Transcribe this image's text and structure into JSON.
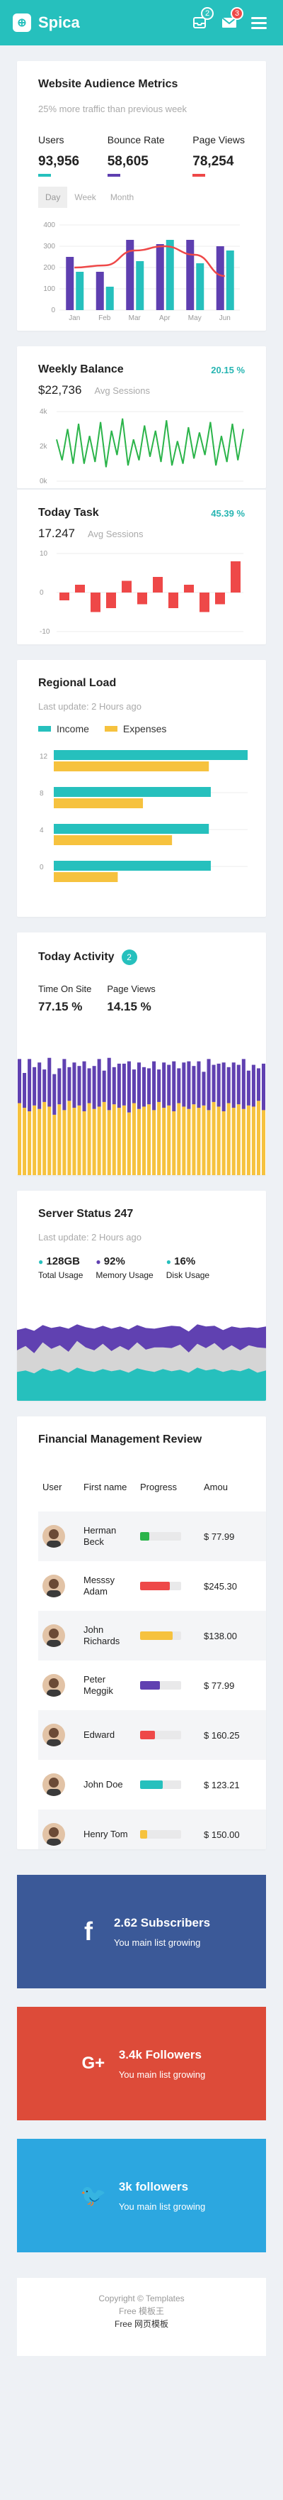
{
  "app": {
    "brand": "Spica",
    "logo_icon": "plus-square-icon",
    "topbar_color": "#26c0bd"
  },
  "notifications": {
    "inbox_badge": "2",
    "mail_badge": "3"
  },
  "audience": {
    "title": "Website Audience Metrics",
    "subtitle": "25% more traffic than previous week",
    "metrics": [
      {
        "label": "Users",
        "value": "93,956",
        "color": "#26c0bd"
      },
      {
        "label": "Bounce Rate",
        "value": "58,605",
        "color": "#5e3fb0"
      },
      {
        "label": "Page Views",
        "value": "78,254",
        "color": "#ee4848"
      }
    ],
    "tabs": [
      "Day",
      "Week",
      "Month"
    ],
    "chart_data": {
      "type": "bar",
      "categories": [
        "Jan",
        "Feb",
        "Mar",
        "Apr",
        "May",
        "Jun"
      ],
      "y_ticks": [
        0,
        100,
        200,
        300,
        400
      ],
      "ylim": [
        0,
        400
      ],
      "series": [
        {
          "values": [
            250,
            180,
            330,
            310,
            330,
            300
          ],
          "color": "#5e3fb0"
        },
        {
          "values": [
            180,
            110,
            230,
            330,
            220,
            280
          ],
          "color": "#26c0bd"
        }
      ],
      "line": {
        "values": [
          200,
          210,
          280,
          300,
          260,
          160
        ],
        "color": "#ee4848"
      }
    }
  },
  "weekly": {
    "title": "Weekly Balance",
    "change": "20.15 %",
    "amount": "$22,736",
    "avg_label": "Avg Sessions",
    "chart_data": {
      "type": "line",
      "y_ticks": [
        "4k",
        "2k",
        "0k"
      ],
      "ylim": [
        0,
        4
      ],
      "values": [
        2.4,
        1.2,
        3.0,
        1.0,
        3.3,
        1.0,
        2.6,
        1.1,
        3.4,
        0.8,
        2.9,
        1.5,
        3.6,
        0.9,
        2.4,
        1.2,
        3.2,
        1.4,
        2.9,
        1.1,
        3.5,
        0.9,
        2.3,
        1.0,
        3.1,
        1.3,
        2.8,
        1.5,
        3.4,
        0.9,
        2.6,
        1.1,
        3.3,
        1.2,
        3.0
      ],
      "color": "#2bb44a"
    }
  },
  "today_task": {
    "title": "Today Task",
    "change": "45.39 %",
    "value": "17.247",
    "avg_label": "Avg Sessions",
    "chart_data": {
      "type": "bar",
      "y_ticks": [
        10,
        0,
        -10
      ],
      "ylim": [
        -10,
        10
      ],
      "values": [
        -2,
        2,
        -5,
        -4,
        3,
        -3,
        4,
        -4,
        2,
        -5,
        -3,
        8
      ],
      "color": "#ee4848"
    }
  },
  "regional": {
    "title": "Regional Load",
    "updated": "Last update: 2 Hours ago",
    "legend": [
      {
        "label": "Income",
        "color": "#26c0bd"
      },
      {
        "label": "Expenses",
        "color": "#f6c23e"
      }
    ],
    "chart_data": {
      "type": "bar",
      "orientation": "horizontal",
      "categories": [
        "12",
        "8",
        "4",
        "0"
      ],
      "series": [
        {
          "values": [
            100,
            81,
            80,
            81
          ]
        },
        {
          "values": [
            80,
            46,
            61,
            33
          ]
        }
      ],
      "xlim": [
        0,
        100
      ]
    }
  },
  "activity": {
    "title": "Today Activity",
    "badge": "2",
    "stats": [
      {
        "label": "Time On Site",
        "value": "77.15 %"
      },
      {
        "label": "Page Views",
        "value": "14.15 %"
      }
    ],
    "chart_data": {
      "type": "bar",
      "stacked": true,
      "series": [
        {
          "values": [
            62,
            58,
            55,
            60,
            57,
            63,
            59,
            52,
            61,
            56,
            64,
            58,
            60,
            55,
            62,
            57,
            59,
            63,
            56,
            61,
            58,
            60,
            54,
            62,
            57,
            59,
            61,
            56,
            63,
            58,
            60,
            55,
            62,
            59,
            57,
            61,
            58,
            60,
            56,
            63,
            59,
            55,
            62,
            58,
            61,
            57,
            60,
            59,
            64,
            56
          ],
          "color": "#f6c23e"
        },
        {
          "values": [
            38,
            30,
            45,
            33,
            40,
            28,
            42,
            35,
            31,
            44,
            29,
            39,
            34,
            43,
            30,
            37,
            41,
            27,
            45,
            32,
            38,
            36,
            44,
            29,
            40,
            34,
            31,
            42,
            28,
            39,
            35,
            43,
            30,
            38,
            41,
            33,
            40,
            29,
            44,
            32,
            37,
            42,
            31,
            39,
            34,
            43,
            30,
            36,
            28,
            40
          ],
          "color": "#6041b1"
        }
      ]
    }
  },
  "server": {
    "title": "Server Status 247",
    "updated": "Last update: 2 Hours ago",
    "stats": [
      {
        "value": "128GB",
        "label": "Total Usage",
        "color": "#26c0bd"
      },
      {
        "value": "92%",
        "label": "Memory Usage",
        "color": "#6041b1"
      },
      {
        "value": "16%",
        "label": "Disk Usage",
        "color": "#26c0bd"
      }
    ],
    "chart_data": {
      "type": "area",
      "stacked": true,
      "series": [
        {
          "values": [
            40,
            42,
            38,
            45,
            41,
            44,
            39,
            46,
            42,
            40,
            44,
            41,
            43,
            39,
            45,
            42,
            40,
            44,
            41,
            43,
            39,
            46,
            42,
            44,
            40,
            43,
            41,
            45,
            39,
            42
          ],
          "color": "#26c0bd"
        },
        {
          "values": [
            30,
            34,
            28,
            36,
            31,
            33,
            29,
            37,
            32,
            30,
            35,
            28,
            33,
            31,
            36,
            29,
            34,
            30,
            32,
            35,
            28,
            33,
            31,
            36,
            30,
            34,
            29,
            32,
            35,
            31
          ],
          "color": "#d5d5d5"
        },
        {
          "values": [
            28,
            25,
            31,
            24,
            29,
            26,
            32,
            23,
            28,
            30,
            25,
            31,
            27,
            29,
            24,
            30,
            26,
            28,
            31,
            25,
            29,
            27,
            30,
            24,
            28,
            26,
            31,
            25,
            27,
            30
          ],
          "color": "#6041b1"
        }
      ]
    }
  },
  "finance": {
    "title": "Financial Management Review",
    "headers": [
      "User",
      "First name",
      "Progress",
      "Amou"
    ],
    "rows": [
      {
        "name": "Herman Beck",
        "progress": 0.22,
        "color": "#2bb44a",
        "amount": "$ 77.99"
      },
      {
        "name": "Messsy Adam",
        "progress": 0.72,
        "color": "#ee4848",
        "amount": "$245.30"
      },
      {
        "name": "John Richards",
        "progress": 0.8,
        "color": "#f6c23e",
        "amount": "$138.00"
      },
      {
        "name": "Peter Meggik",
        "progress": 0.48,
        "color": "#6041b1",
        "amount": "$ 77.99"
      },
      {
        "name": "Edward",
        "progress": 0.36,
        "color": "#ee4848",
        "amount": "$ 160.25"
      },
      {
        "name": "John Doe",
        "progress": 0.56,
        "color": "#26c0bd",
        "amount": "$ 123.21"
      },
      {
        "name": "Henry Tom",
        "progress": 0.18,
        "color": "#f6c23e",
        "amount": "$ 150.00"
      }
    ]
  },
  "socials": [
    {
      "glyph": "f",
      "icon": "facebook-icon",
      "title": "2.62 Subscribers",
      "sub": "You main list growing",
      "color": "#3b5998"
    },
    {
      "glyph": "G+",
      "icon": "google-plus-icon",
      "title": "3.4k Followers",
      "sub": "You main list growing",
      "color": "#dd4b39"
    },
    {
      "glyph": "🐦",
      "icon": "twitter-icon",
      "title": "3k followers",
      "sub": "You main list growing",
      "color": "#2ca7e0"
    }
  ],
  "footer": {
    "line1": "Copyright © Templates",
    "line2": "Free 模板王",
    "line3": "Free 网页模板"
  }
}
